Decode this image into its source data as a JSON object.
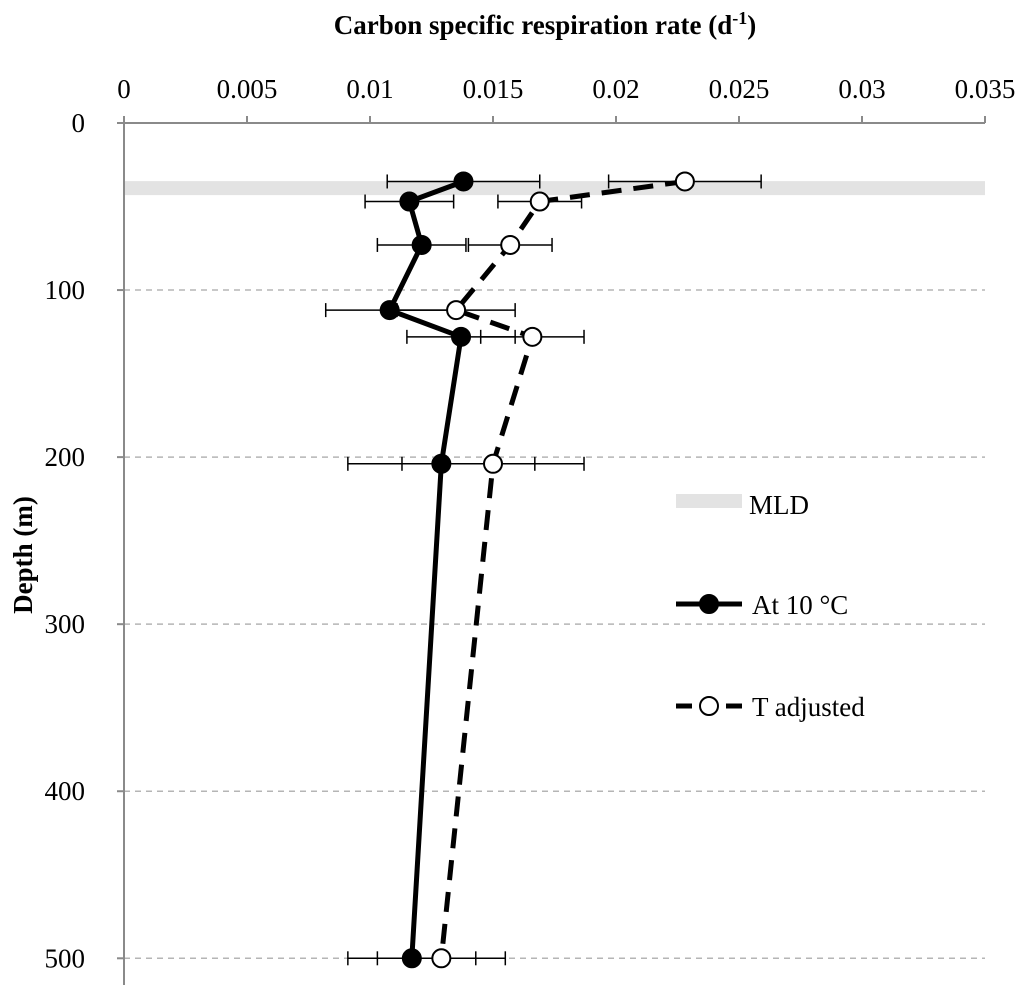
{
  "chart_data": {
    "type": "line",
    "title": {
      "main": "Carbon specific respiration rate (d",
      "superscript": "-1",
      "close": ")"
    },
    "ylabel": "Depth (m)",
    "xlim": [
      0,
      0.035
    ],
    "ylim": [
      0,
      510
    ],
    "y_reversed": true,
    "x_axis_position": "top",
    "x_ticks": [
      "0",
      "0.005",
      "0.01",
      "0.015",
      "0.02",
      "0.025",
      "0.03",
      "0.035"
    ],
    "y_ticks": [
      "0",
      "100",
      "200",
      "300",
      "400",
      "500"
    ],
    "grid": "horizontal-dashed",
    "legend_position": "right",
    "mld": {
      "label": "MLD",
      "depth": 27,
      "color": "#e3e3e3"
    },
    "series": [
      {
        "name": "At 10 °C",
        "line_style": "solid",
        "marker": "filled-circle",
        "color": "#000000",
        "points": [
          {
            "depth": 35,
            "rate": 0.0138,
            "err": 0.0031
          },
          {
            "depth": 47,
            "rate": 0.0116,
            "err": 0.0018
          },
          {
            "depth": 73,
            "rate": 0.0121,
            "err": 0.0018
          },
          {
            "depth": 112,
            "rate": 0.0108,
            "err": 0.0026
          },
          {
            "depth": 128,
            "rate": 0.0137,
            "err": 0.0022
          },
          {
            "depth": 204,
            "rate": 0.0129,
            "err": 0.0038
          },
          {
            "depth": 500,
            "rate": 0.0117,
            "err": 0.0026
          }
        ]
      },
      {
        "name": "T adjusted",
        "line_style": "dashed",
        "marker": "open-circle",
        "color": "#000000",
        "points": [
          {
            "depth": 35,
            "rate": 0.0228,
            "err": 0.0031
          },
          {
            "depth": 47,
            "rate": 0.0169,
            "err": 0.0017
          },
          {
            "depth": 73,
            "rate": 0.0157,
            "err": 0.0017
          },
          {
            "depth": 112,
            "rate": 0.0135,
            "err": 0.0024
          },
          {
            "depth": 128,
            "rate": 0.0166,
            "err": 0.0021
          },
          {
            "depth": 204,
            "rate": 0.015,
            "err": 0.0037
          },
          {
            "depth": 500,
            "rate": 0.0129,
            "err": 0.0026
          }
        ]
      }
    ]
  }
}
